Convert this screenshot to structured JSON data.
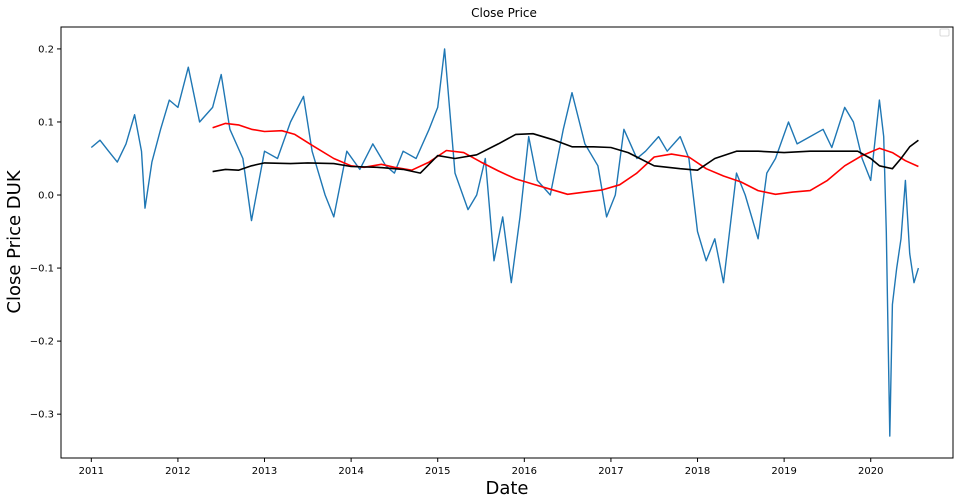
{
  "chart_data": {
    "type": "line",
    "title": "Close Price",
    "xlabel": "Date",
    "ylabel": "Close Price DUK",
    "xlim": [
      2010.65,
      2020.95
    ],
    "ylim": [
      -0.36,
      0.23
    ],
    "xticks": [
      2011,
      2012,
      2013,
      2014,
      2015,
      2016,
      2017,
      2018,
      2019,
      2020
    ],
    "xtick_labels": [
      "2011",
      "2012",
      "2013",
      "2014",
      "2015",
      "2016",
      "2017",
      "2018",
      "2019",
      "2020"
    ],
    "yticks": [
      -0.3,
      -0.2,
      -0.1,
      0.0,
      0.1,
      0.2
    ],
    "ytick_labels": [
      "−0.3",
      "−0.2",
      "−0.1",
      "0.0",
      "0.1",
      "0.2"
    ],
    "grid": false,
    "legend": "upper right (empty)",
    "series": [
      {
        "color": "#1f77b4",
        "x": [
          2011.0,
          2011.1,
          2011.2,
          2011.3,
          2011.4,
          2011.5,
          2011.58,
          2011.62,
          2011.7,
          2011.8,
          2011.9,
          2012.0,
          2012.12,
          2012.25,
          2012.4,
          2012.5,
          2012.6,
          2012.75,
          2012.85,
          2013.0,
          2013.15,
          2013.3,
          2013.45,
          2013.55,
          2013.7,
          2013.8,
          2013.95,
          2014.1,
          2014.25,
          2014.4,
          2014.5,
          2014.6,
          2014.75,
          2014.9,
          2015.0,
          2015.08,
          2015.2,
          2015.35,
          2015.45,
          2015.55,
          2015.65,
          2015.75,
          2015.85,
          2015.95,
          2016.05,
          2016.15,
          2016.3,
          2016.45,
          2016.55,
          2016.7,
          2016.85,
          2016.95,
          2017.05,
          2017.15,
          2017.3,
          2017.4,
          2017.55,
          2017.65,
          2017.8,
          2017.9,
          2018.0,
          2018.1,
          2018.2,
          2018.3,
          2018.45,
          2018.55,
          2018.7,
          2018.8,
          2018.9,
          2019.05,
          2019.15,
          2019.3,
          2019.45,
          2019.55,
          2019.7,
          2019.8,
          2019.9,
          2020.0,
          2020.1,
          2020.15,
          2020.18,
          2020.22,
          2020.25,
          2020.3,
          2020.35,
          2020.4,
          2020.45,
          2020.5,
          2020.55
        ],
        "y": [
          0.065,
          0.075,
          0.06,
          0.045,
          0.07,
          0.11,
          0.06,
          -0.018,
          0.045,
          0.09,
          0.13,
          0.12,
          0.175,
          0.1,
          0.12,
          0.165,
          0.09,
          0.05,
          -0.035,
          0.06,
          0.05,
          0.1,
          0.135,
          0.06,
          0.0,
          -0.03,
          0.06,
          0.035,
          0.07,
          0.04,
          0.03,
          0.06,
          0.05,
          0.09,
          0.12,
          0.2,
          0.03,
          -0.02,
          0.0,
          0.05,
          -0.09,
          -0.03,
          -0.12,
          -0.03,
          0.08,
          0.02,
          0.0,
          0.09,
          0.14,
          0.07,
          0.04,
          -0.03,
          0.0,
          0.09,
          0.05,
          0.06,
          0.08,
          0.06,
          0.08,
          0.05,
          -0.05,
          -0.09,
          -0.06,
          -0.12,
          0.03,
          0.0,
          -0.06,
          0.03,
          0.05,
          0.1,
          0.07,
          0.08,
          0.09,
          0.065,
          0.12,
          0.1,
          0.05,
          0.02,
          0.13,
          0.08,
          -0.05,
          -0.33,
          -0.15,
          -0.1,
          -0.06,
          0.02,
          -0.08,
          -0.12,
          -0.1
        ]
      },
      {
        "color": "#ff0000",
        "x": [
          2012.4,
          2012.55,
          2012.7,
          2012.85,
          2013.0,
          2013.2,
          2013.35,
          2013.55,
          2013.8,
          2014.0,
          2014.15,
          2014.35,
          2014.5,
          2014.7,
          2014.9,
          2015.1,
          2015.3,
          2015.5,
          2015.7,
          2015.9,
          2016.1,
          2016.3,
          2016.5,
          2016.7,
          2016.9,
          2017.1,
          2017.3,
          2017.5,
          2017.7,
          2017.9,
          2018.1,
          2018.3,
          2018.5,
          2018.7,
          2018.9,
          2019.1,
          2019.3,
          2019.5,
          2019.7,
          2019.9,
          2020.1,
          2020.25,
          2020.4,
          2020.55
        ],
        "y": [
          0.092,
          0.098,
          0.096,
          0.09,
          0.087,
          0.088,
          0.083,
          0.068,
          0.05,
          0.04,
          0.038,
          0.042,
          0.038,
          0.034,
          0.045,
          0.061,
          0.058,
          0.045,
          0.033,
          0.022,
          0.015,
          0.008,
          0.001,
          0.004,
          0.007,
          0.014,
          0.03,
          0.052,
          0.056,
          0.052,
          0.036,
          0.026,
          0.018,
          0.006,
          0.001,
          0.004,
          0.006,
          0.02,
          0.04,
          0.054,
          0.064,
          0.058,
          0.047,
          0.039
        ]
      },
      {
        "color": "#000000",
        "x": [
          2012.4,
          2012.55,
          2012.7,
          2012.85,
          2013.0,
          2013.3,
          2013.5,
          2013.8,
          2014.0,
          2014.3,
          2014.6,
          2014.8,
          2015.0,
          2015.2,
          2015.45,
          2015.7,
          2015.9,
          2016.1,
          2016.35,
          2016.55,
          2016.8,
          2017.0,
          2017.2,
          2017.5,
          2017.8,
          2018.0,
          2018.2,
          2018.45,
          2018.7,
          2019.0,
          2019.3,
          2019.6,
          2019.85,
          2020.0,
          2020.1,
          2020.25,
          2020.35,
          2020.45,
          2020.55
        ],
        "y": [
          0.032,
          0.035,
          0.034,
          0.04,
          0.044,
          0.043,
          0.044,
          0.043,
          0.039,
          0.038,
          0.035,
          0.03,
          0.054,
          0.05,
          0.055,
          0.07,
          0.083,
          0.084,
          0.075,
          0.066,
          0.066,
          0.065,
          0.058,
          0.04,
          0.036,
          0.034,
          0.05,
          0.06,
          0.06,
          0.058,
          0.06,
          0.06,
          0.06,
          0.05,
          0.04,
          0.036,
          0.05,
          0.066,
          0.075
        ]
      }
    ]
  }
}
